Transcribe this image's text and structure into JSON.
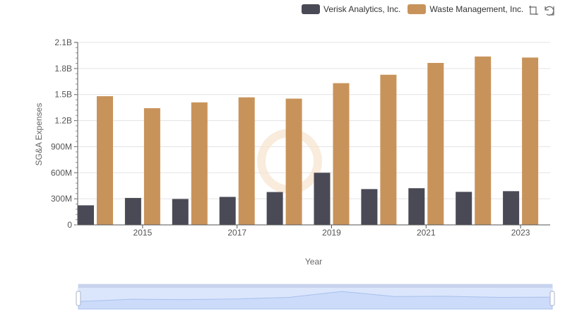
{
  "legend": {
    "items": [
      {
        "label": "Verisk Analytics, Inc.",
        "color": "#4a4a56"
      },
      {
        "label": "Waste Management, Inc.",
        "color": "#c8935a"
      }
    ]
  },
  "toolbox": {
    "icons": [
      "zoom-icon",
      "restore-icon"
    ]
  },
  "chart_data": {
    "type": "bar",
    "title": "",
    "xlabel": "Year",
    "ylabel": "SG&A Expenses",
    "x": [
      2014,
      2015,
      2016,
      2017,
      2018,
      2019,
      2020,
      2021,
      2022,
      2023
    ],
    "x_tick_labels": [
      "2015",
      "2017",
      "2019",
      "2021",
      "2023"
    ],
    "y_tick_values": [
      0,
      300000000,
      600000000,
      900000000,
      1200000000,
      1500000000,
      1800000000,
      2100000000
    ],
    "y_tick_labels": [
      "0",
      "300M",
      "600M",
      "900M",
      "1.2B",
      "1.5B",
      "1.8B",
      "2.1B"
    ],
    "ylim": [
      0,
      2100000000
    ],
    "grid": true,
    "legend_position": "top-right",
    "series": [
      {
        "name": "Verisk Analytics, Inc.",
        "color": "#4a4a56",
        "values": [
          225000000,
          310000000,
          298000000,
          322000000,
          378000000,
          600000000,
          412000000,
          422000000,
          380000000,
          388000000
        ]
      },
      {
        "name": "Waste Management, Inc.",
        "color": "#c8935a",
        "values": [
          1481000000,
          1343000000,
          1410000000,
          1468000000,
          1453000000,
          1631000000,
          1728000000,
          1864000000,
          1938000000,
          1926000000
        ]
      }
    ]
  }
}
